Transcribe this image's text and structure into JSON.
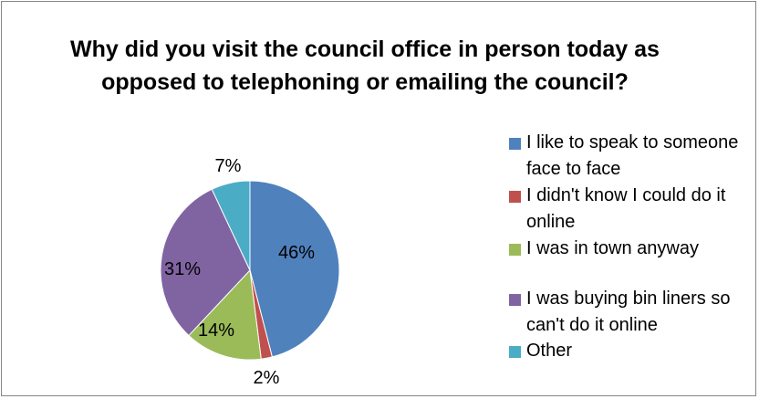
{
  "chart_data": {
    "type": "pie",
    "title": "Why did you visit the council office in person today as opposed to telephoning or emailing the council?",
    "categories": [
      "I like to speak to someone face to face",
      "I didn't know I could do it online",
      "I was in town anyway",
      "I was buying bin liners so can't do it online",
      "Other"
    ],
    "values": [
      46,
      2,
      14,
      31,
      7
    ],
    "data_labels": [
      "46%",
      "2%",
      "14%",
      "31%",
      "7%"
    ],
    "colors": [
      "#4F81BD",
      "#C0504D",
      "#9BBB59",
      "#8064A2",
      "#4BACC6"
    ],
    "legend_position": "right"
  }
}
